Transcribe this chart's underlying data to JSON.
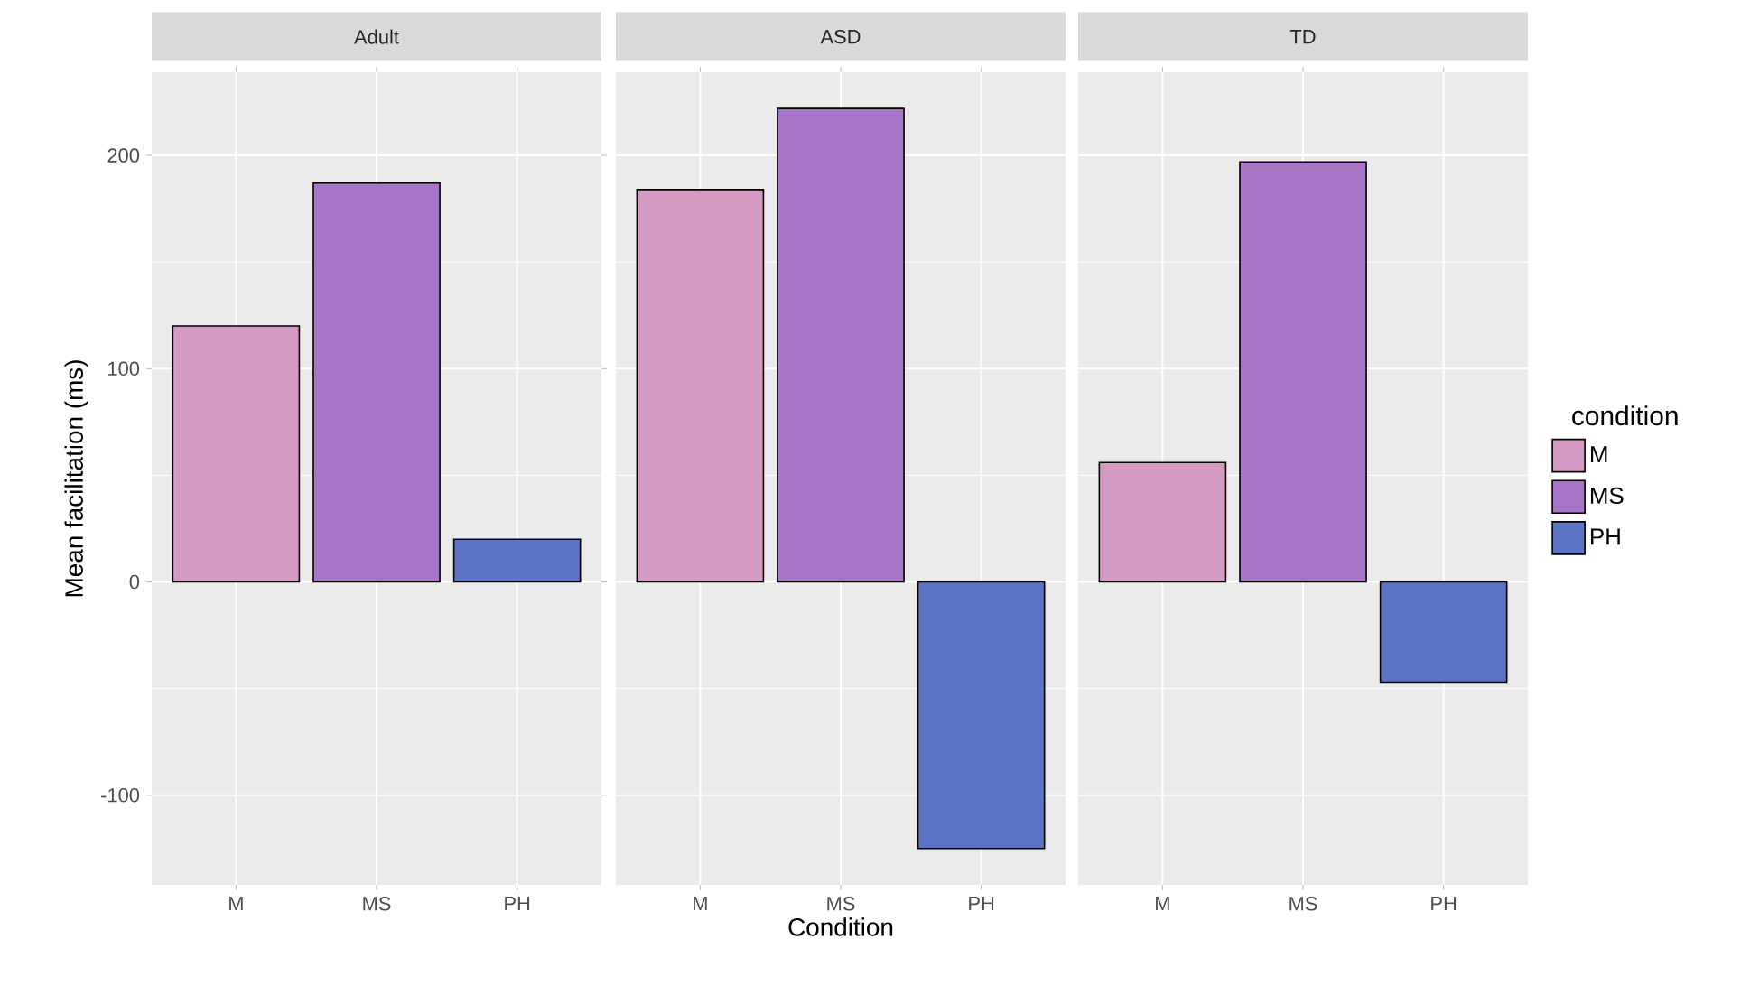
{
  "chart_data": [
    {
      "type": "bar",
      "title": "Adult",
      "ylabel": "Mean facilitation (ms)",
      "categories": [
        "M",
        "MS",
        "PH"
      ],
      "ylim": [
        -142,
        239
      ],
      "yticks": [
        -100,
        0,
        100,
        200
      ],
      "grid": true,
      "series": [
        {
          "color": "#d49ac2",
          "values": [
            120,
            null,
            null
          ]
        },
        {
          "color": "#a874c8",
          "values": [
            null,
            187,
            null
          ]
        },
        {
          "color": "#5b74c4",
          "values": [
            null,
            null,
            20
          ]
        }
      ]
    },
    {
      "type": "bar",
      "title": "ASD",
      "xlabel": "Condition",
      "categories": [
        "M",
        "MS",
        "PH"
      ],
      "ylim": [
        -142,
        239
      ],
      "yticks": [
        -100,
        0,
        100,
        200
      ],
      "grid": true,
      "tick_labels": "x",
      "series": [
        {
          "color": "#d49ac2",
          "values": [
            184,
            null,
            null
          ]
        },
        {
          "color": "#a874c8",
          "values": [
            null,
            222,
            null
          ]
        },
        {
          "color": "#5b74c4",
          "values": [
            null,
            null,
            -125
          ]
        }
      ]
    },
    {
      "type": "bar",
      "title": "TD",
      "categories": [
        "M",
        "MS",
        "PH"
      ],
      "ylim": [
        -142,
        239
      ],
      "yticks": [
        -100,
        0,
        100,
        200
      ],
      "grid": true,
      "tick_labels": "x",
      "legend": "right",
      "legend_title": "condition",
      "series": [
        {
          "name": "M",
          "color": "#d49ac2",
          "values": [
            56,
            null,
            null
          ]
        },
        {
          "name": "MS",
          "color": "#a874c8",
          "values": [
            null,
            197,
            null
          ]
        },
        {
          "name": "PH",
          "color": "#5b74c4",
          "values": [
            null,
            null,
            -47
          ]
        }
      ]
    }
  ]
}
